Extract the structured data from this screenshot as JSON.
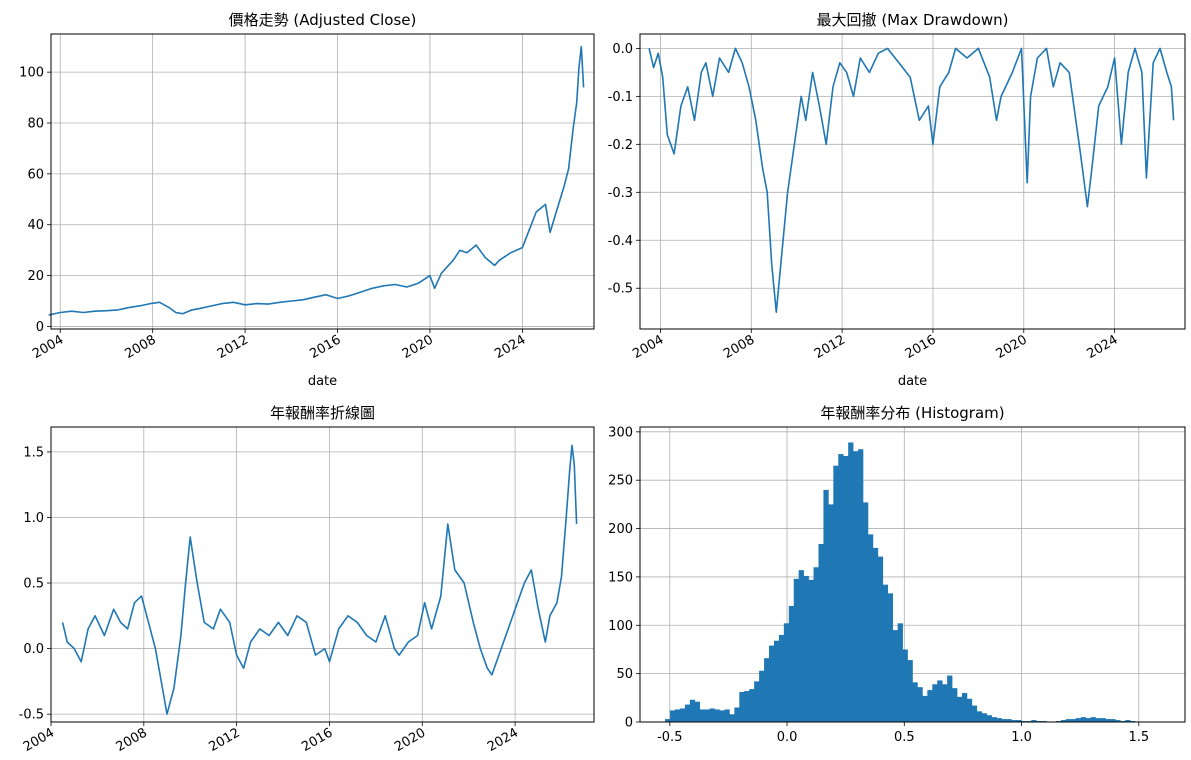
{
  "chart_data": [
    {
      "type": "line",
      "title": "價格走勢 (Adjusted Close)",
      "xlabel": "date",
      "ylabel": "",
      "xlim": [
        2003.6,
        2027.1
      ],
      "ylim": [
        -1,
        115
      ],
      "x_ticks": [
        2004,
        2008,
        2012,
        2016,
        2020,
        2024
      ],
      "x_tick_labels": [
        "2004",
        "2008",
        "2012",
        "2016",
        "2020",
        "2024"
      ],
      "y_ticks": [
        0,
        20,
        40,
        60,
        80,
        100
      ],
      "y_tick_labels": [
        "0",
        "20",
        "40",
        "60",
        "80",
        "100"
      ],
      "grid": true,
      "series": [
        {
          "color": "#1f77b4",
          "x": [
            2003.5,
            2004.0,
            2004.5,
            2005.0,
            2005.5,
            2006.0,
            2006.5,
            2007.0,
            2007.5,
            2007.9,
            2008.3,
            2008.7,
            2009.0,
            2009.3,
            2009.7,
            2010.0,
            2010.5,
            2011.0,
            2011.5,
            2012.0,
            2012.5,
            2013.0,
            2013.5,
            2014.0,
            2014.5,
            2015.0,
            2015.5,
            2016.0,
            2016.5,
            2017.0,
            2017.5,
            2018.0,
            2018.5,
            2019.0,
            2019.5,
            2020.0,
            2020.2,
            2020.5,
            2021.0,
            2021.3,
            2021.6,
            2022.0,
            2022.4,
            2022.8,
            2023.0,
            2023.5,
            2024.0,
            2024.3,
            2024.6,
            2025.0,
            2025.2,
            2025.5,
            2025.8,
            2026.0,
            2026.2,
            2026.35,
            2026.45,
            2026.55,
            2026.65
          ],
          "y": [
            4.5,
            5.5,
            6.0,
            5.5,
            6.0,
            6.2,
            6.5,
            7.5,
            8.2,
            9.0,
            9.5,
            7.5,
            5.5,
            5.0,
            6.5,
            7.0,
            8.0,
            9.0,
            9.5,
            8.5,
            9.0,
            8.8,
            9.5,
            10.0,
            10.5,
            11.5,
            12.5,
            11.0,
            12.0,
            13.5,
            15.0,
            16.0,
            16.5,
            15.5,
            17.0,
            20.0,
            15.0,
            21.0,
            26.0,
            30.0,
            29.0,
            32.0,
            27.0,
            24.0,
            26.0,
            29.0,
            31.0,
            38.0,
            45.0,
            48.0,
            37.0,
            46.0,
            55.0,
            62.0,
            78.0,
            88.0,
            102.0,
            110.0,
            94.0
          ]
        }
      ]
    },
    {
      "type": "line",
      "title": "最大回撤 (Max Drawdown)",
      "xlabel": "date",
      "ylabel": "",
      "xlim": [
        2003.1,
        2027.1
      ],
      "ylim": [
        -0.585,
        0.03
      ],
      "x_ticks": [
        2004,
        2008,
        2012,
        2016,
        2020,
        2024
      ],
      "x_tick_labels": [
        "2004",
        "2008",
        "2012",
        "2016",
        "2020",
        "2024"
      ],
      "y_ticks": [
        0.0,
        -0.1,
        -0.2,
        -0.3,
        -0.4,
        -0.5
      ],
      "y_tick_labels": [
        "0.0",
        "-0.1",
        "-0.2",
        "-0.3",
        "-0.4",
        "-0.5"
      ],
      "grid": true,
      "series": [
        {
          "color": "#1f77b4",
          "x": [
            2003.5,
            2003.7,
            2003.9,
            2004.1,
            2004.3,
            2004.6,
            2004.9,
            2005.2,
            2005.5,
            2005.8,
            2006.0,
            2006.3,
            2006.6,
            2007.0,
            2007.3,
            2007.6,
            2007.9,
            2008.2,
            2008.5,
            2008.7,
            2008.9,
            2009.1,
            2009.3,
            2009.6,
            2009.9,
            2010.2,
            2010.4,
            2010.7,
            2011.0,
            2011.3,
            2011.6,
            2011.9,
            2012.2,
            2012.5,
            2012.8,
            2013.2,
            2013.6,
            2014.0,
            2014.5,
            2015.0,
            2015.4,
            2015.8,
            2016.0,
            2016.3,
            2016.7,
            2017.0,
            2017.5,
            2018.0,
            2018.5,
            2018.8,
            2019.0,
            2019.5,
            2019.9,
            2020.15,
            2020.3,
            2020.6,
            2021.0,
            2021.3,
            2021.6,
            2022.0,
            2022.5,
            2022.8,
            2023.0,
            2023.3,
            2023.7,
            2024.0,
            2024.3,
            2024.6,
            2024.9,
            2025.2,
            2025.4,
            2025.7,
            2026.0,
            2026.3,
            2026.5,
            2026.6
          ],
          "y": [
            0.0,
            -0.04,
            -0.01,
            -0.06,
            -0.18,
            -0.22,
            -0.12,
            -0.08,
            -0.15,
            -0.05,
            -0.03,
            -0.1,
            -0.02,
            -0.05,
            0.0,
            -0.03,
            -0.08,
            -0.15,
            -0.25,
            -0.3,
            -0.45,
            -0.55,
            -0.45,
            -0.3,
            -0.2,
            -0.1,
            -0.15,
            -0.05,
            -0.12,
            -0.2,
            -0.08,
            -0.03,
            -0.05,
            -0.1,
            -0.02,
            -0.05,
            -0.01,
            0.0,
            -0.03,
            -0.06,
            -0.15,
            -0.12,
            -0.2,
            -0.08,
            -0.05,
            0.0,
            -0.02,
            0.0,
            -0.06,
            -0.15,
            -0.1,
            -0.05,
            0.0,
            -0.28,
            -0.1,
            -0.02,
            0.0,
            -0.08,
            -0.03,
            -0.05,
            -0.22,
            -0.33,
            -0.25,
            -0.12,
            -0.08,
            -0.02,
            -0.2,
            -0.05,
            0.0,
            -0.05,
            -0.27,
            -0.03,
            0.0,
            -0.05,
            -0.08,
            -0.15
          ]
        }
      ]
    },
    {
      "type": "line",
      "title": "年報酬率折線圖",
      "xlabel": "",
      "ylabel": "",
      "xlim": [
        2004.0,
        2027.4
      ],
      "ylim": [
        -0.56,
        1.69
      ],
      "x_ticks": [
        2004,
        2008,
        2012,
        2016,
        2020,
        2024
      ],
      "x_tick_labels": [
        "2004",
        "2008",
        "2012",
        "2016",
        "2020",
        "2024"
      ],
      "y_ticks": [
        -0.5,
        0.0,
        0.5,
        1.0,
        1.5
      ],
      "y_tick_labels": [
        "-0.5",
        "0.0",
        "0.5",
        "1.0",
        "1.5"
      ],
      "grid": true,
      "series": [
        {
          "color": "#1f77b4",
          "x": [
            2004.5,
            2004.7,
            2005.0,
            2005.3,
            2005.6,
            2005.9,
            2006.3,
            2006.7,
            2007.0,
            2007.3,
            2007.6,
            2007.9,
            2008.2,
            2008.5,
            2008.8,
            2009.0,
            2009.3,
            2009.6,
            2009.8,
            2010.0,
            2010.3,
            2010.6,
            2011.0,
            2011.3,
            2011.7,
            2012.0,
            2012.3,
            2012.6,
            2013.0,
            2013.4,
            2013.8,
            2014.2,
            2014.6,
            2015.0,
            2015.4,
            2015.8,
            2016.0,
            2016.4,
            2016.8,
            2017.2,
            2017.6,
            2018.0,
            2018.4,
            2018.8,
            2019.0,
            2019.4,
            2019.8,
            2020.1,
            2020.4,
            2020.8,
            2021.1,
            2021.4,
            2021.8,
            2022.2,
            2022.5,
            2022.8,
            2023.0,
            2023.4,
            2023.8,
            2024.1,
            2024.4,
            2024.7,
            2025.0,
            2025.3,
            2025.5,
            2025.8,
            2026.0,
            2026.2,
            2026.35,
            2026.45,
            2026.55,
            2026.65
          ],
          "y": [
            0.2,
            0.05,
            0.0,
            -0.1,
            0.15,
            0.25,
            0.1,
            0.3,
            0.2,
            0.15,
            0.35,
            0.4,
            0.2,
            0.0,
            -0.3,
            -0.5,
            -0.3,
            0.1,
            0.5,
            0.85,
            0.5,
            0.2,
            0.15,
            0.3,
            0.2,
            -0.05,
            -0.15,
            0.05,
            0.15,
            0.1,
            0.2,
            0.1,
            0.25,
            0.2,
            -0.05,
            0.0,
            -0.1,
            0.15,
            0.25,
            0.2,
            0.1,
            0.05,
            0.25,
            0.0,
            -0.05,
            0.05,
            0.1,
            0.35,
            0.15,
            0.4,
            0.95,
            0.6,
            0.5,
            0.2,
            0.0,
            -0.15,
            -0.2,
            0.0,
            0.2,
            0.35,
            0.5,
            0.6,
            0.3,
            0.05,
            0.25,
            0.35,
            0.55,
            1.0,
            1.35,
            1.55,
            1.4,
            0.95
          ]
        }
      ]
    },
    {
      "type": "bar",
      "title": "年報酬率分布 (Histogram)",
      "xlabel": "",
      "ylabel": "",
      "xlim": [
        -0.627,
        1.697
      ],
      "ylim": [
        0,
        305
      ],
      "x_ticks": [
        -0.5,
        0.0,
        0.5,
        1.0,
        1.5
      ],
      "x_tick_labels": [
        "-0.5",
        "0.0",
        "0.5",
        "1.0",
        "1.5"
      ],
      "y_ticks": [
        0,
        50,
        100,
        150,
        200,
        250,
        300
      ],
      "y_tick_labels": [
        "0",
        "50",
        "100",
        "150",
        "200",
        "250",
        "300"
      ],
      "grid": true,
      "bin_start": -0.52,
      "bin_width": 0.0211,
      "values": [
        3,
        12,
        13,
        14,
        18,
        23,
        21,
        13,
        13,
        14,
        13,
        12,
        13,
        8,
        15,
        31,
        32,
        34,
        42,
        53,
        66,
        79,
        84,
        90,
        102,
        120,
        148,
        157,
        151,
        147,
        160,
        184,
        240,
        225,
        265,
        277,
        275,
        289,
        280,
        282,
        227,
        194,
        180,
        171,
        142,
        133,
        95,
        102,
        75,
        64,
        41,
        36,
        27,
        33,
        39,
        43,
        39,
        48,
        35,
        26,
        30,
        24,
        17,
        11,
        9,
        7,
        5,
        4,
        3,
        3,
        2,
        2,
        1,
        1,
        2,
        1,
        1,
        0,
        0,
        1,
        2,
        3,
        3,
        4,
        5,
        4,
        5,
        4,
        4,
        3,
        3,
        2,
        1,
        2,
        1
      ]
    }
  ]
}
